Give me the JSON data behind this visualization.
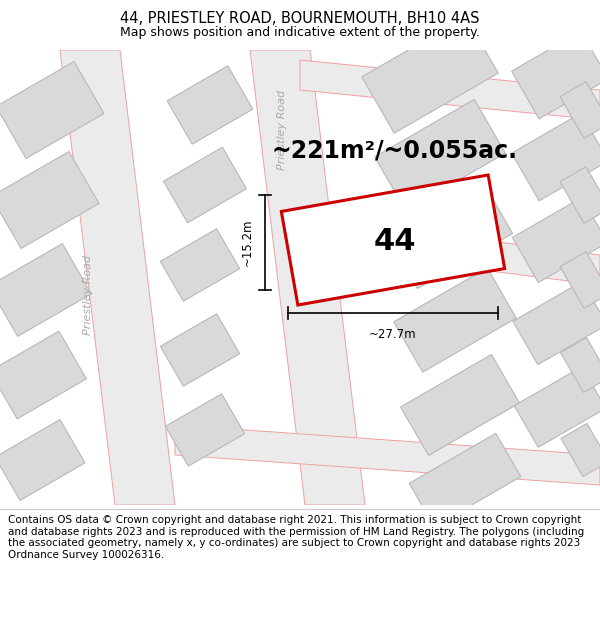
{
  "title": "44, PRIESTLEY ROAD, BOURNEMOUTH, BH10 4AS",
  "subtitle": "Map shows position and indicative extent of the property.",
  "footer": "Contains OS data © Crown copyright and database right 2021. This information is subject to Crown copyright and database rights 2023 and is reproduced with the permission of HM Land Registry. The polygons (including the associated geometry, namely x, y co-ordinates) are subject to Crown copyright and database rights 2023 Ordnance Survey 100026316.",
  "area_label": "~221m²/~0.055ac.",
  "number_label": "44",
  "width_label": "~27.7m",
  "height_label": "~15.2m",
  "road_label": "Priestley Road",
  "map_bg": "#f2f2f2",
  "building_fill": "#d9d9d9",
  "building_edge": "#b8b8b8",
  "road_fill": "#ebebeb",
  "pink_color": "#f0a0a0",
  "red_color": "#cc0000",
  "white": "#ffffff",
  "title_fontsize": 10.5,
  "subtitle_fontsize": 9,
  "footer_fontsize": 7.5,
  "area_fontsize": 17,
  "number_fontsize": 22,
  "road_text_fontsize": 8
}
